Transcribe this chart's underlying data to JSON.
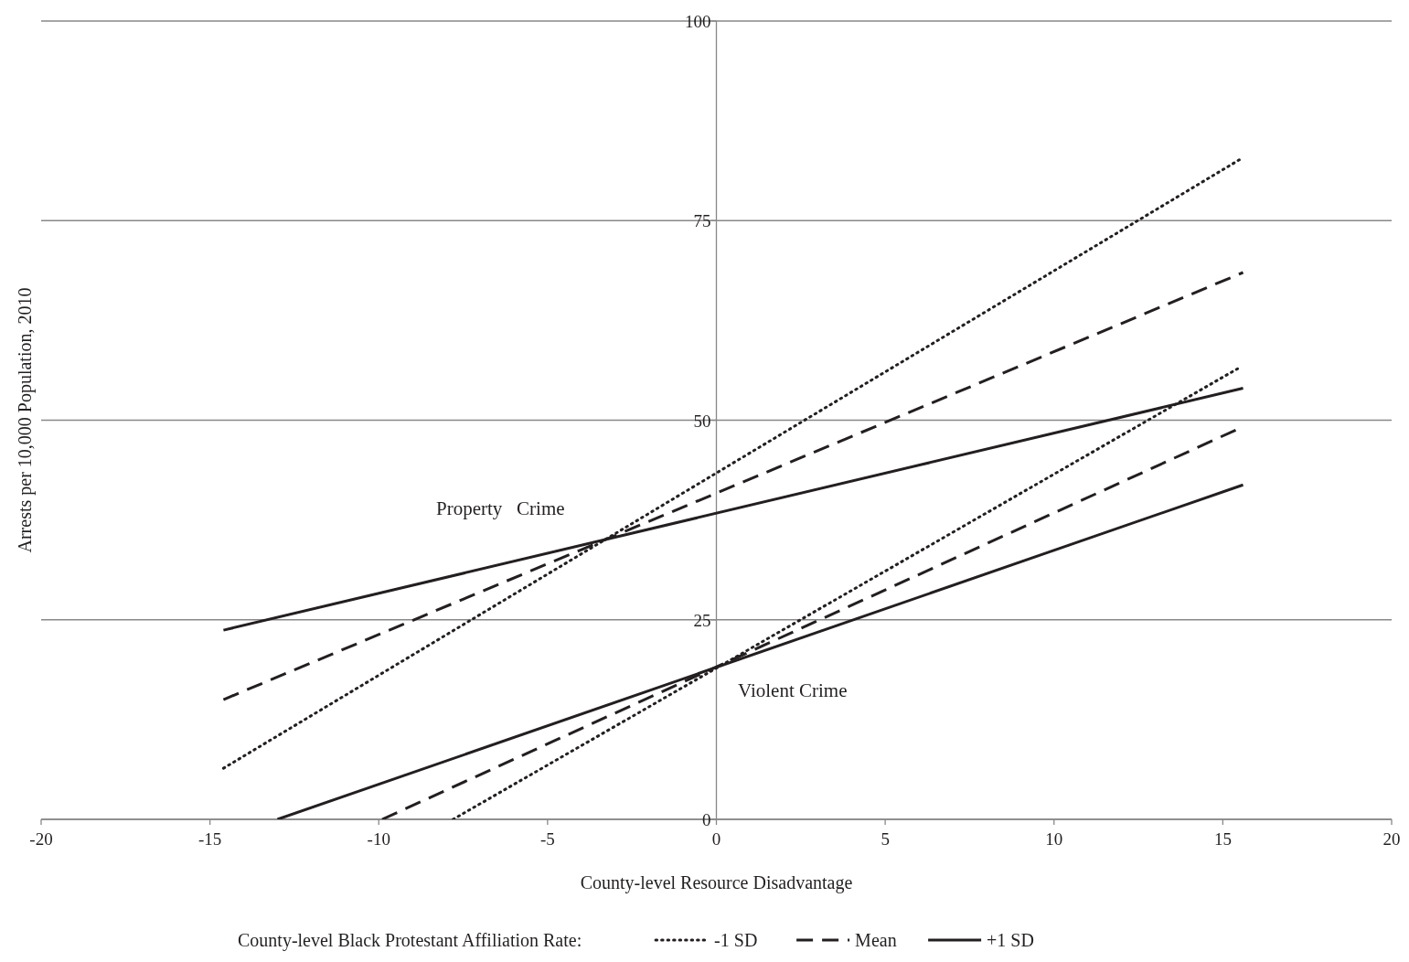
{
  "chart_data": {
    "type": "line",
    "xlabel": "County-level Resource Disadvantage",
    "ylabel": "Arrests per 10,000 Population, 2010",
    "legend_title": "County-level Black Protestant Affiliation Rate:",
    "legend": "bottom",
    "grid": "y",
    "xlim": [
      -20,
      20
    ],
    "ylim": [
      0,
      100
    ],
    "xticks": [
      -20,
      -15,
      -10,
      -5,
      0,
      5,
      10,
      15,
      20
    ],
    "yticks": [
      0,
      25,
      50,
      75,
      100
    ],
    "series": [
      {
        "name": "-1 SD",
        "color": "#231f20",
        "line_style": "dotted",
        "x": [
          -14.6,
          15.6
        ],
        "values": [
          6.4,
          82.9
        ]
      },
      {
        "name": "Mean",
        "color": "#231f20",
        "line_style": "dashed",
        "x": [
          -14.6,
          15.6
        ],
        "values": [
          15.0,
          68.5
        ]
      },
      {
        "name": "+1 SD",
        "color": "#231f20",
        "line_style": "solid",
        "x": [
          -14.6,
          15.6
        ],
        "values": [
          23.7,
          54.0
        ]
      },
      {
        "color": "#231f20",
        "line_style": "dotted",
        "x": [
          -7.8,
          15.5
        ],
        "values": [
          0,
          56.6
        ]
      },
      {
        "color": "#231f20",
        "line_style": "dashed",
        "x": [
          -9.9,
          15.4
        ],
        "values": [
          0,
          48.8
        ]
      },
      {
        "color": "#231f20",
        "line_style": "solid",
        "x": [
          -13.0,
          15.6
        ],
        "values": [
          0,
          41.9
        ]
      }
    ],
    "annotations": [
      "Property   Crime",
      "Violent Crime"
    ]
  }
}
